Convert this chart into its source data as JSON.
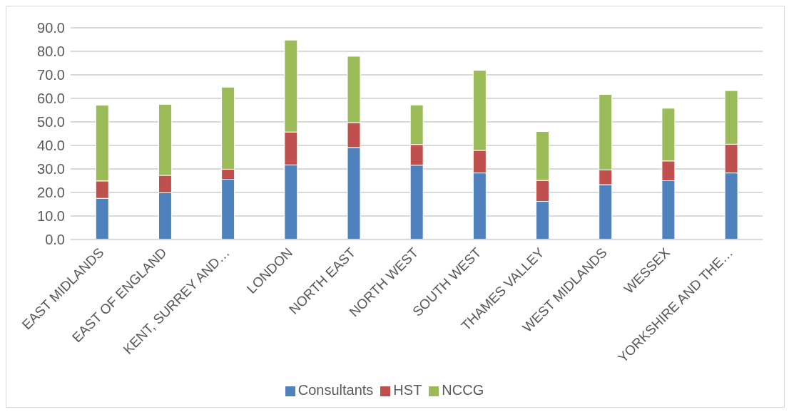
{
  "chart_data": {
    "type": "bar",
    "stacked": true,
    "categories": [
      "EAST MIDLANDS",
      "EAST OF ENGLAND",
      "KENT, SURREY AND…",
      "LONDON",
      "NORTH EAST",
      "NORTH WEST",
      "SOUTH WEST",
      "THAMES VALLEY",
      "WEST MIDLANDS",
      "WESSEX",
      "YORKSHIRE AND THE…"
    ],
    "series": [
      {
        "name": "Consultants",
        "color": "#4f81bd",
        "values": [
          17.5,
          19.9,
          25.6,
          31.7,
          39.1,
          31.6,
          28.3,
          16.2,
          23.3,
          25.0,
          28.3
        ]
      },
      {
        "name": "HST",
        "color": "#c0504d",
        "values": [
          7.4,
          7.4,
          4.3,
          14.0,
          10.6,
          8.8,
          9.6,
          8.9,
          6.3,
          8.4,
          12.2
        ]
      },
      {
        "name": "NCCG",
        "color": "#9bbb59",
        "values": [
          32.2,
          30.2,
          34.9,
          39.1,
          28.2,
          16.8,
          34.0,
          20.8,
          32.1,
          22.4,
          22.8
        ]
      }
    ],
    "ylim": [
      0,
      90
    ],
    "yticks": [
      {
        "value": 0,
        "label": "0.0"
      },
      {
        "value": 10,
        "label": "10.0"
      },
      {
        "value": 20,
        "label": "20.0"
      },
      {
        "value": 30,
        "label": "30.0"
      },
      {
        "value": 40,
        "label": "40.0"
      },
      {
        "value": 50,
        "label": "50.0"
      },
      {
        "value": 60,
        "label": "60.0"
      },
      {
        "value": 70,
        "label": "70.0"
      },
      {
        "value": 80,
        "label": "80.0"
      },
      {
        "value": 90,
        "label": "90.0"
      }
    ],
    "grid": "y",
    "legend": "bottom"
  }
}
